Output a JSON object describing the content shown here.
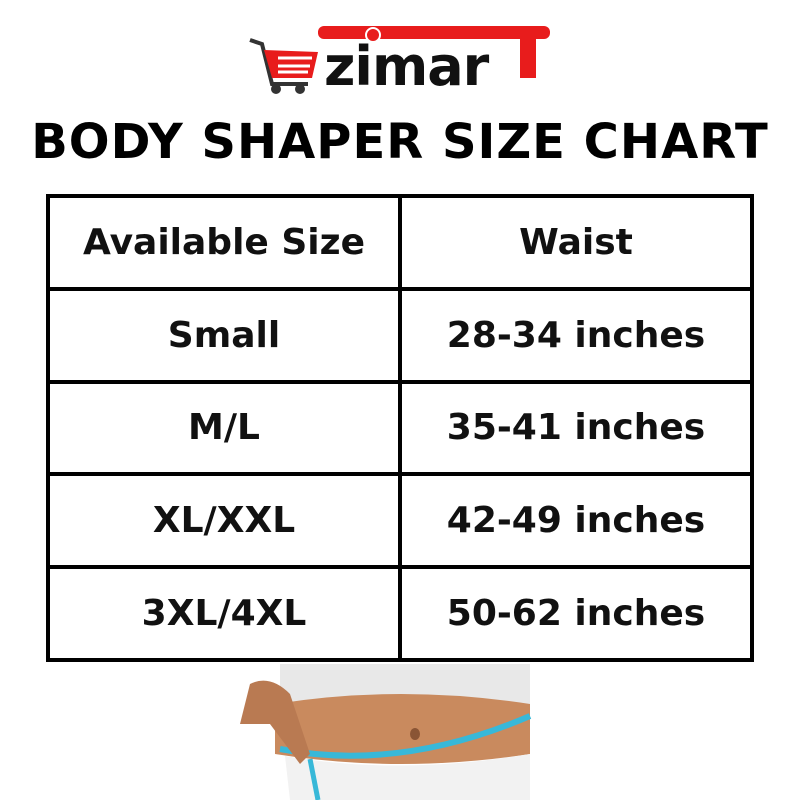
{
  "brand": {
    "logo_text": "ezimarT",
    "logo_word": "zimar",
    "accent": "#e81c1c"
  },
  "title": "BODY SHAPER SIZE CHART",
  "table": {
    "headers": [
      "Available Size",
      "Waist"
    ],
    "rows": [
      [
        "Small",
        "28-34 inches"
      ],
      [
        "M/L",
        "35-41 inches"
      ],
      [
        "XL/XXL",
        "42-49 inches"
      ],
      [
        "3XL/4XL",
        "50-62 inches"
      ]
    ]
  }
}
